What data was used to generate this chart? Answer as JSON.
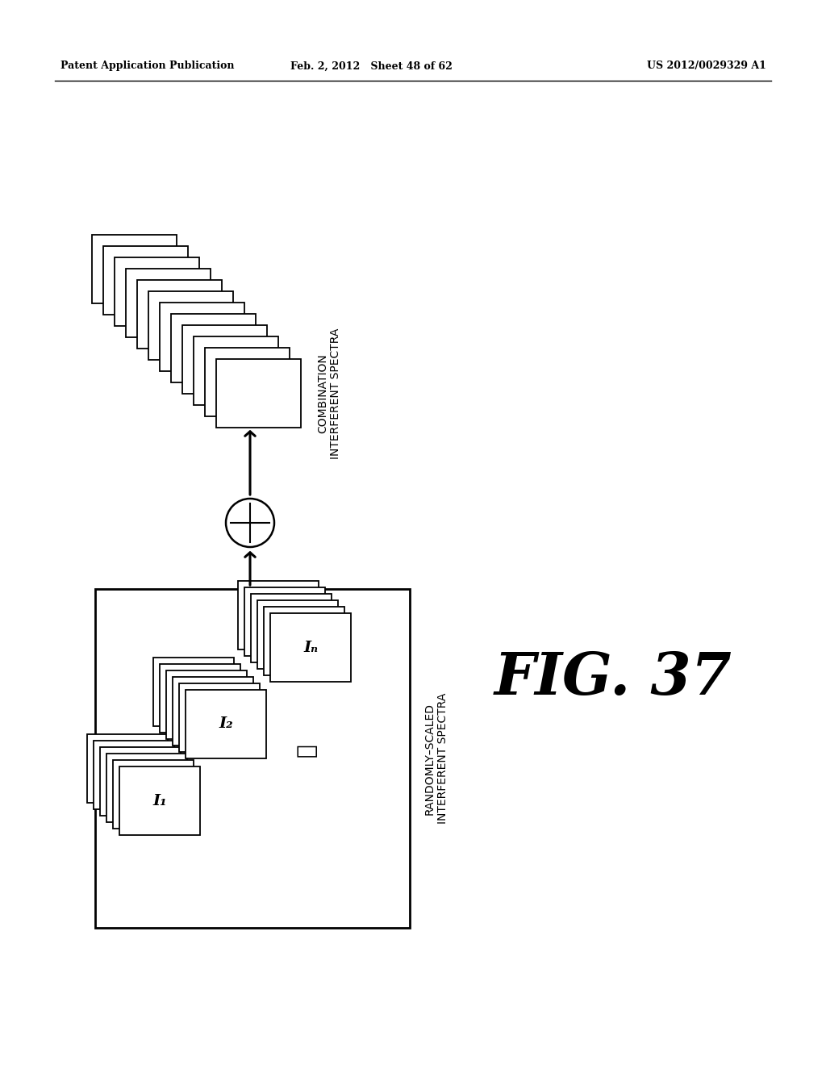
{
  "background_color": "#ffffff",
  "header_left": "Patent Application Publication",
  "header_mid": "Feb. 2, 2012   Sheet 48 of 62",
  "header_right": "US 2012/0029329 A1",
  "fig_label": "FIG. 37",
  "label_randomly_scaled_line1": "RANDOMLY–SCALED",
  "label_randomly_scaled_line2": "INTERFERENT SPECTRA",
  "label_combination_line1": "COMBINATION",
  "label_combination_line2": "INTERFERENT SPECTRA",
  "stack_label_1": "I₁",
  "stack_label_2": "I₂",
  "stack_label_N": "Iₙ",
  "num_pages_input": 6,
  "num_pages_output": 12
}
